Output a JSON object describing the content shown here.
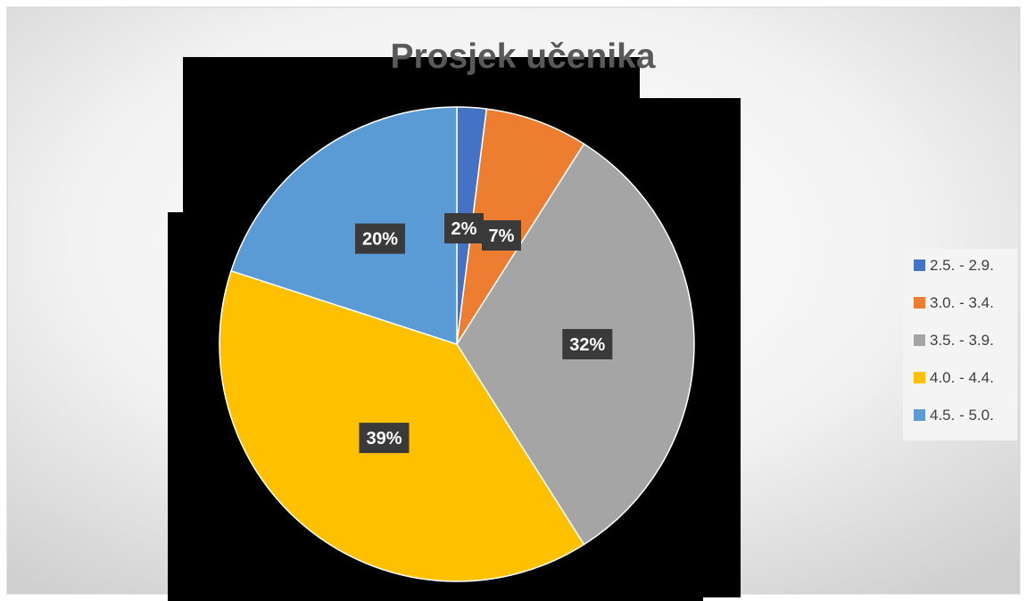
{
  "chart_data": {
    "type": "pie",
    "title": "Prosjek učenika",
    "categories": [
      "2.5. - 2.9.",
      "3.0. - 3.4.",
      "3.5. - 3.9.",
      "4.0. - 4.4.",
      "4.5. - 5.0."
    ],
    "values": [
      2,
      7,
      32,
      39,
      20
    ],
    "labels": [
      "2%",
      "7%",
      "32%",
      "39%",
      "20%"
    ],
    "colors": [
      "#4472c4",
      "#ed7d31",
      "#a5a5a5",
      "#ffc000",
      "#5b9bd5"
    ],
    "legend_position": "right"
  }
}
